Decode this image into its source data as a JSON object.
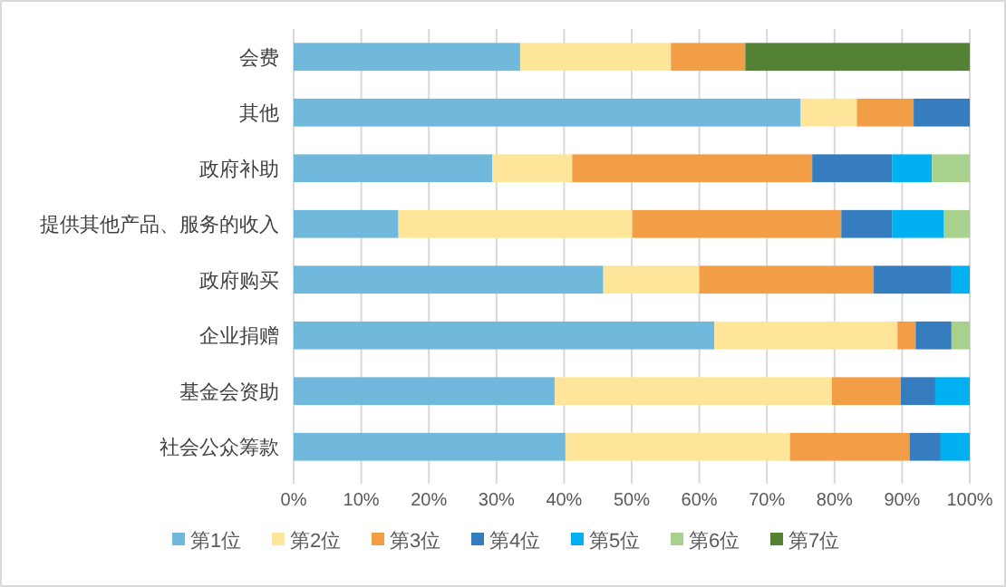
{
  "chart_data": {
    "type": "bar",
    "orientation": "horizontal",
    "stacked": true,
    "categories": [
      "会费",
      "其他",
      "政府补助",
      "提供其他产品、服务的收入",
      "政府购买",
      "企业捐赠",
      "基金会资助",
      "社会公众筹款"
    ],
    "series": [
      {
        "name": "第1位",
        "color": "#70b8dc",
        "values": [
          33.5,
          75.0,
          29.4,
          15.5,
          45.8,
          62.2,
          38.6,
          40.2
        ]
      },
      {
        "name": "第2位",
        "color": "#fee599",
        "values": [
          22.3,
          8.3,
          11.8,
          34.6,
          14.2,
          27.1,
          41.0,
          33.2
        ]
      },
      {
        "name": "第3位",
        "color": "#f29e47",
        "values": [
          11.0,
          8.4,
          35.5,
          30.9,
          25.8,
          2.7,
          10.2,
          17.7
        ]
      },
      {
        "name": "第4位",
        "color": "#357dbf",
        "values": [
          null,
          8.3,
          11.8,
          7.5,
          11.5,
          5.3,
          5.1,
          4.6
        ]
      },
      {
        "name": "第5位",
        "color": "#00b0f0",
        "values": [
          null,
          null,
          5.9,
          7.7,
          2.7,
          null,
          5.1,
          4.3
        ]
      },
      {
        "name": "第6位",
        "color": "#a9d18e",
        "values": [
          null,
          null,
          5.6,
          3.8,
          null,
          2.7,
          null,
          null
        ]
      },
      {
        "name": "第7位",
        "color": "#548235",
        "values": [
          33.2,
          null,
          null,
          null,
          null,
          null,
          null,
          null
        ]
      }
    ],
    "xlim": [
      0,
      100
    ],
    "xticks": [
      {
        "value": 0,
        "label": "0%"
      },
      {
        "value": 10,
        "label": "10%"
      },
      {
        "value": 20,
        "label": "20%"
      },
      {
        "value": 30,
        "label": "30%"
      },
      {
        "value": 40,
        "label": "40%"
      },
      {
        "value": 50,
        "label": "50%"
      },
      {
        "value": 60,
        "label": "60%"
      },
      {
        "value": 70,
        "label": "70%"
      },
      {
        "value": 80,
        "label": "80%"
      },
      {
        "value": 90,
        "label": "90%"
      },
      {
        "value": 100,
        "label": "100%"
      }
    ],
    "grid": "x",
    "legend": "bottom"
  }
}
